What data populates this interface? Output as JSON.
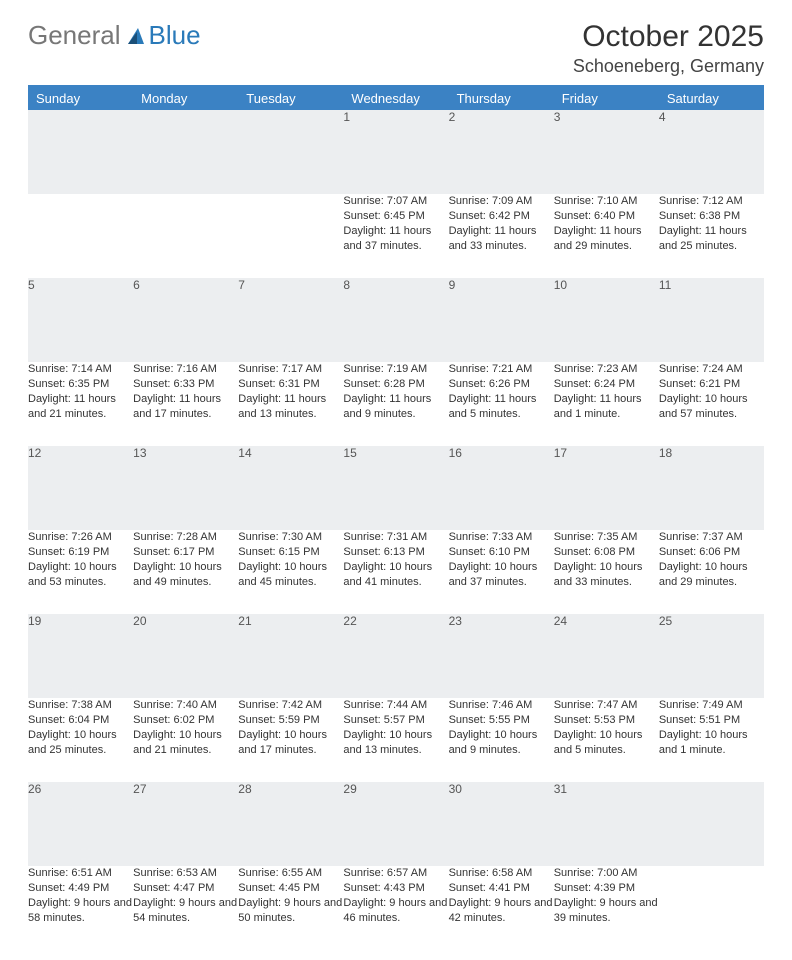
{
  "brand": {
    "part1": "General",
    "part2": "Blue"
  },
  "title": "October 2025",
  "location": "Schoeneberg, Germany",
  "theme": {
    "accent": "#3b82c4",
    "header_bg": "#3b82c4",
    "daynum_bg": "#eceef0",
    "text": "#333333"
  },
  "weekdays": [
    "Sunday",
    "Monday",
    "Tuesday",
    "Wednesday",
    "Thursday",
    "Friday",
    "Saturday"
  ],
  "weeks": [
    [
      null,
      null,
      null,
      {
        "n": "1",
        "sr": "Sunrise: 7:07 AM",
        "ss": "Sunset: 6:45 PM",
        "dl": "Daylight: 11 hours and 37 minutes."
      },
      {
        "n": "2",
        "sr": "Sunrise: 7:09 AM",
        "ss": "Sunset: 6:42 PM",
        "dl": "Daylight: 11 hours and 33 minutes."
      },
      {
        "n": "3",
        "sr": "Sunrise: 7:10 AM",
        "ss": "Sunset: 6:40 PM",
        "dl": "Daylight: 11 hours and 29 minutes."
      },
      {
        "n": "4",
        "sr": "Sunrise: 7:12 AM",
        "ss": "Sunset: 6:38 PM",
        "dl": "Daylight: 11 hours and 25 minutes."
      }
    ],
    [
      {
        "n": "5",
        "sr": "Sunrise: 7:14 AM",
        "ss": "Sunset: 6:35 PM",
        "dl": "Daylight: 11 hours and 21 minutes."
      },
      {
        "n": "6",
        "sr": "Sunrise: 7:16 AM",
        "ss": "Sunset: 6:33 PM",
        "dl": "Daylight: 11 hours and 17 minutes."
      },
      {
        "n": "7",
        "sr": "Sunrise: 7:17 AM",
        "ss": "Sunset: 6:31 PM",
        "dl": "Daylight: 11 hours and 13 minutes."
      },
      {
        "n": "8",
        "sr": "Sunrise: 7:19 AM",
        "ss": "Sunset: 6:28 PM",
        "dl": "Daylight: 11 hours and 9 minutes."
      },
      {
        "n": "9",
        "sr": "Sunrise: 7:21 AM",
        "ss": "Sunset: 6:26 PM",
        "dl": "Daylight: 11 hours and 5 minutes."
      },
      {
        "n": "10",
        "sr": "Sunrise: 7:23 AM",
        "ss": "Sunset: 6:24 PM",
        "dl": "Daylight: 11 hours and 1 minute."
      },
      {
        "n": "11",
        "sr": "Sunrise: 7:24 AM",
        "ss": "Sunset: 6:21 PM",
        "dl": "Daylight: 10 hours and 57 minutes."
      }
    ],
    [
      {
        "n": "12",
        "sr": "Sunrise: 7:26 AM",
        "ss": "Sunset: 6:19 PM",
        "dl": "Daylight: 10 hours and 53 minutes."
      },
      {
        "n": "13",
        "sr": "Sunrise: 7:28 AM",
        "ss": "Sunset: 6:17 PM",
        "dl": "Daylight: 10 hours and 49 minutes."
      },
      {
        "n": "14",
        "sr": "Sunrise: 7:30 AM",
        "ss": "Sunset: 6:15 PM",
        "dl": "Daylight: 10 hours and 45 minutes."
      },
      {
        "n": "15",
        "sr": "Sunrise: 7:31 AM",
        "ss": "Sunset: 6:13 PM",
        "dl": "Daylight: 10 hours and 41 minutes."
      },
      {
        "n": "16",
        "sr": "Sunrise: 7:33 AM",
        "ss": "Sunset: 6:10 PM",
        "dl": "Daylight: 10 hours and 37 minutes."
      },
      {
        "n": "17",
        "sr": "Sunrise: 7:35 AM",
        "ss": "Sunset: 6:08 PM",
        "dl": "Daylight: 10 hours and 33 minutes."
      },
      {
        "n": "18",
        "sr": "Sunrise: 7:37 AM",
        "ss": "Sunset: 6:06 PM",
        "dl": "Daylight: 10 hours and 29 minutes."
      }
    ],
    [
      {
        "n": "19",
        "sr": "Sunrise: 7:38 AM",
        "ss": "Sunset: 6:04 PM",
        "dl": "Daylight: 10 hours and 25 minutes."
      },
      {
        "n": "20",
        "sr": "Sunrise: 7:40 AM",
        "ss": "Sunset: 6:02 PM",
        "dl": "Daylight: 10 hours and 21 minutes."
      },
      {
        "n": "21",
        "sr": "Sunrise: 7:42 AM",
        "ss": "Sunset: 5:59 PM",
        "dl": "Daylight: 10 hours and 17 minutes."
      },
      {
        "n": "22",
        "sr": "Sunrise: 7:44 AM",
        "ss": "Sunset: 5:57 PM",
        "dl": "Daylight: 10 hours and 13 minutes."
      },
      {
        "n": "23",
        "sr": "Sunrise: 7:46 AM",
        "ss": "Sunset: 5:55 PM",
        "dl": "Daylight: 10 hours and 9 minutes."
      },
      {
        "n": "24",
        "sr": "Sunrise: 7:47 AM",
        "ss": "Sunset: 5:53 PM",
        "dl": "Daylight: 10 hours and 5 minutes."
      },
      {
        "n": "25",
        "sr": "Sunrise: 7:49 AM",
        "ss": "Sunset: 5:51 PM",
        "dl": "Daylight: 10 hours and 1 minute."
      }
    ],
    [
      {
        "n": "26",
        "sr": "Sunrise: 6:51 AM",
        "ss": "Sunset: 4:49 PM",
        "dl": "Daylight: 9 hours and 58 minutes."
      },
      {
        "n": "27",
        "sr": "Sunrise: 6:53 AM",
        "ss": "Sunset: 4:47 PM",
        "dl": "Daylight: 9 hours and 54 minutes."
      },
      {
        "n": "28",
        "sr": "Sunrise: 6:55 AM",
        "ss": "Sunset: 4:45 PM",
        "dl": "Daylight: 9 hours and 50 minutes."
      },
      {
        "n": "29",
        "sr": "Sunrise: 6:57 AM",
        "ss": "Sunset: 4:43 PM",
        "dl": "Daylight: 9 hours and 46 minutes."
      },
      {
        "n": "30",
        "sr": "Sunrise: 6:58 AM",
        "ss": "Sunset: 4:41 PM",
        "dl": "Daylight: 9 hours and 42 minutes."
      },
      {
        "n": "31",
        "sr": "Sunrise: 7:00 AM",
        "ss": "Sunset: 4:39 PM",
        "dl": "Daylight: 9 hours and 39 minutes."
      },
      null
    ]
  ]
}
